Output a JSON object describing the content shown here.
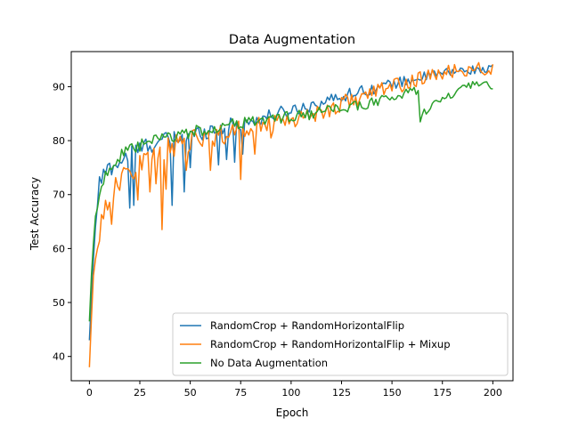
{
  "chart_data": {
    "type": "line",
    "title": "Data Augmentation",
    "xlabel": "Epoch",
    "ylabel": "Test Accuracy",
    "xlim": [
      -9,
      210
    ],
    "ylim": [
      35.5,
      96.5
    ],
    "xticks": [
      0,
      25,
      50,
      75,
      100,
      125,
      150,
      175,
      200
    ],
    "yticks": [
      40,
      50,
      60,
      70,
      80,
      90
    ],
    "grid": false,
    "legend_position": "lower-right",
    "series": [
      {
        "name": "RandomCrop + RandomHorizontalFlip",
        "color": "#1f77b4",
        "anchors": [
          [
            0,
            43
          ],
          [
            1,
            51
          ],
          [
            2,
            58
          ],
          [
            3,
            64
          ],
          [
            4,
            68
          ],
          [
            5,
            72
          ],
          [
            6,
            73
          ],
          [
            8,
            74
          ],
          [
            10,
            75
          ],
          [
            15,
            76
          ],
          [
            20,
            77.5
          ],
          [
            25,
            78.5
          ],
          [
            30,
            79.3
          ],
          [
            35,
            79.8
          ],
          [
            40,
            80.2
          ],
          [
            45,
            80.5
          ],
          [
            50,
            81
          ],
          [
            60,
            82
          ],
          [
            70,
            82.8
          ],
          [
            80,
            83.5
          ],
          [
            90,
            84.6
          ],
          [
            100,
            85.6
          ],
          [
            110,
            86.6
          ],
          [
            120,
            87.6
          ],
          [
            125,
            88.2
          ],
          [
            130,
            88.8
          ],
          [
            140,
            89.6
          ],
          [
            150,
            90.5
          ],
          [
            160,
            91.3
          ],
          [
            170,
            92.2
          ],
          [
            180,
            92.8
          ],
          [
            190,
            93.1
          ],
          [
            200,
            93.3
          ]
        ],
        "noise": 1.8,
        "noise_decay": 0.6,
        "dips": [
          [
            20,
            67.5
          ],
          [
            22,
            68
          ],
          [
            41,
            68
          ],
          [
            47,
            70.5
          ],
          [
            50,
            75
          ],
          [
            64,
            75.5
          ],
          [
            68,
            76.5
          ],
          [
            72,
            76
          ],
          [
            76,
            77.5
          ]
        ]
      },
      {
        "name": "RandomCrop + RandomHorizontalFlip + Mixup",
        "color": "#ff7f0e",
        "anchors": [
          [
            0,
            38
          ],
          [
            1,
            47
          ],
          [
            2,
            55
          ],
          [
            3,
            58
          ],
          [
            4,
            60
          ],
          [
            5,
            63
          ],
          [
            6,
            65
          ],
          [
            8,
            68
          ],
          [
            10,
            69.5
          ],
          [
            15,
            72
          ],
          [
            20,
            74.5
          ],
          [
            25,
            76
          ],
          [
            30,
            77
          ],
          [
            35,
            78
          ],
          [
            40,
            78.8
          ],
          [
            45,
            79.3
          ],
          [
            50,
            79.8
          ],
          [
            60,
            80.8
          ],
          [
            70,
            81.5
          ],
          [
            80,
            82.5
          ],
          [
            90,
            83.5
          ],
          [
            100,
            84
          ],
          [
            110,
            84.8
          ],
          [
            120,
            86
          ],
          [
            125,
            86.8
          ],
          [
            130,
            87.5
          ],
          [
            140,
            88.8
          ],
          [
            150,
            90
          ],
          [
            160,
            91
          ],
          [
            170,
            92
          ],
          [
            180,
            92.8
          ],
          [
            190,
            93.2
          ],
          [
            200,
            93.5
          ]
        ],
        "noise": 2.4,
        "noise_decay": 0.5,
        "dips": [
          [
            11,
            64.5
          ],
          [
            24,
            69
          ],
          [
            30,
            70.5
          ],
          [
            33,
            72
          ],
          [
            36,
            63.5
          ],
          [
            38,
            71
          ],
          [
            48,
            74.5
          ],
          [
            60,
            74.5
          ],
          [
            75,
            72.8
          ],
          [
            82,
            77.5
          ],
          [
            90,
            80.5
          ]
        ]
      },
      {
        "name": "No Data Augmentation",
        "color": "#2ca02c",
        "anchors": [
          [
            0,
            46.5
          ],
          [
            1,
            55
          ],
          [
            2,
            61
          ],
          [
            3,
            66
          ],
          [
            4,
            67.5
          ],
          [
            5,
            70
          ],
          [
            6,
            72
          ],
          [
            8,
            73.5
          ],
          [
            10,
            75
          ],
          [
            15,
            77
          ],
          [
            20,
            78
          ],
          [
            25,
            79
          ],
          [
            30,
            79.8
          ],
          [
            35,
            80.2
          ],
          [
            40,
            80.7
          ],
          [
            50,
            81.5
          ],
          [
            60,
            82.2
          ],
          [
            70,
            82.9
          ],
          [
            80,
            83.5
          ],
          [
            90,
            84
          ],
          [
            100,
            84.5
          ],
          [
            110,
            84.9
          ],
          [
            120,
            85.6
          ],
          [
            130,
            86.3
          ],
          [
            140,
            87
          ],
          [
            150,
            88
          ],
          [
            160,
            89
          ],
          [
            163,
            89.5
          ],
          [
            164,
            84.2
          ],
          [
            166,
            85.5
          ],
          [
            170,
            86.5
          ],
          [
            175,
            87.5
          ],
          [
            180,
            88.5
          ],
          [
            185,
            89.5
          ],
          [
            190,
            90.2
          ],
          [
            200,
            90.3
          ]
        ],
        "noise": 1.3,
        "noise_decay": 0.4,
        "dips": []
      }
    ],
    "x_end": 200
  }
}
